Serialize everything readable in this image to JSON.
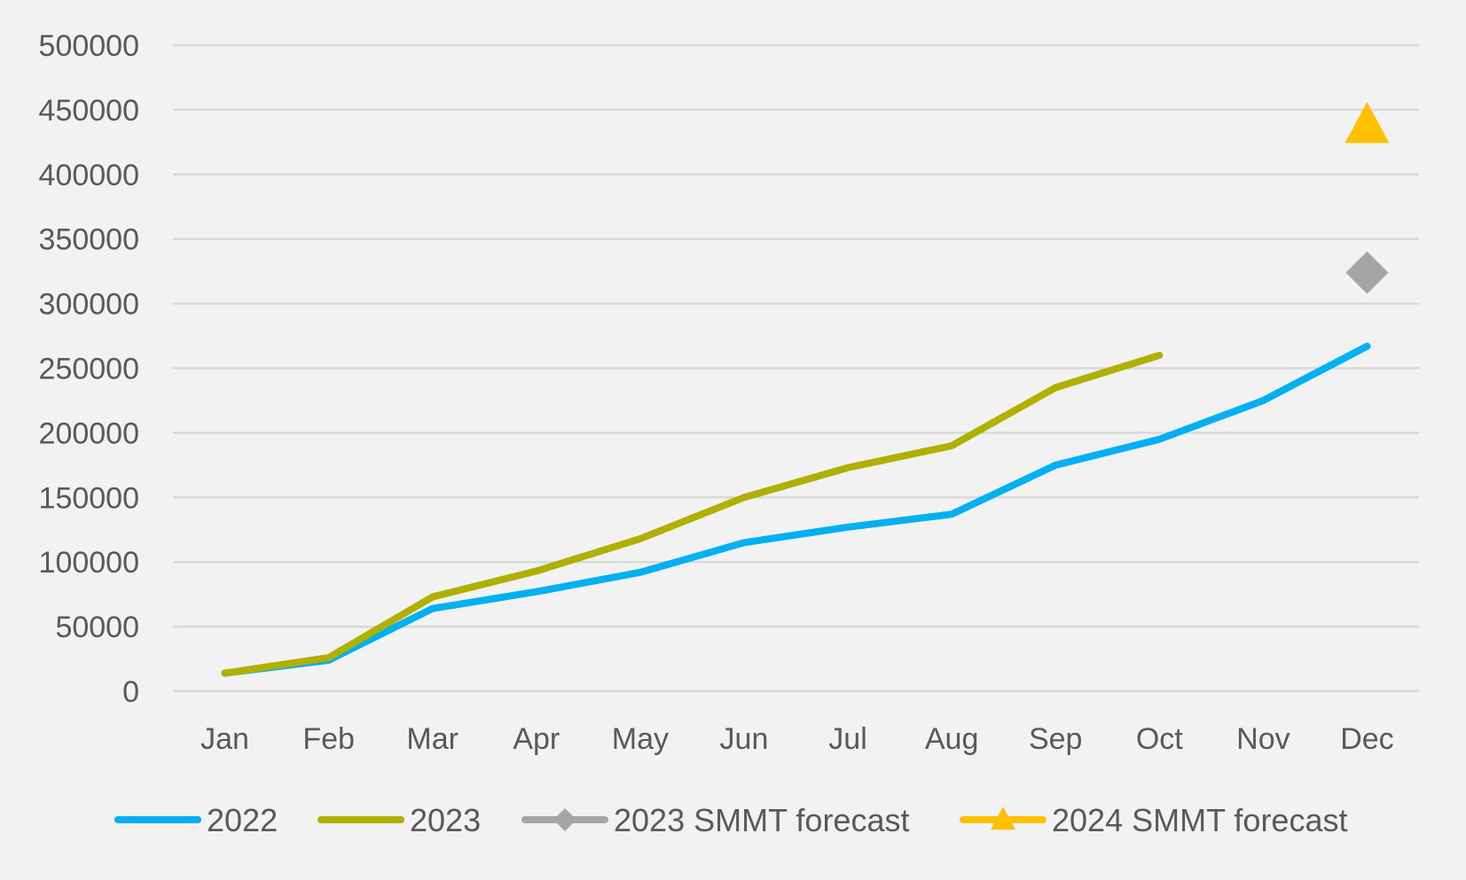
{
  "chart_data": {
    "type": "line",
    "title": "",
    "xlabel": "",
    "ylabel": "",
    "categories": [
      "Jan",
      "Feb",
      "Mar",
      "Apr",
      "May",
      "Jun",
      "Jul",
      "Aug",
      "Sep",
      "Oct",
      "Nov",
      "Dec"
    ],
    "ylim": [
      0,
      500000
    ],
    "yticks": [
      "0",
      "50000",
      "100000",
      "150000",
      "200000",
      "250000",
      "300000",
      "350000",
      "400000",
      "450000",
      "500000"
    ],
    "grid": true,
    "legend_position": "bottom",
    "series": [
      {
        "name": "2022",
        "color": "#00b0f0",
        "marker": "none",
        "values": [
          14000,
          24000,
          64000,
          77000,
          92000,
          115000,
          127000,
          137000,
          175000,
          195000,
          225000,
          267000
        ]
      },
      {
        "name": "2023",
        "color": "#b0b000",
        "marker": "none",
        "values": [
          14000,
          26000,
          73000,
          93000,
          118000,
          150000,
          173000,
          190000,
          235000,
          260000,
          null,
          null
        ]
      },
      {
        "name": "2023 SMMT forecast",
        "color": "#a5a5a5",
        "marker": "diamond",
        "values": [
          null,
          null,
          null,
          null,
          null,
          null,
          null,
          null,
          null,
          null,
          null,
          324000
        ]
      },
      {
        "name": "2024 SMMT forecast",
        "color": "#ffc000",
        "marker": "triangle",
        "values": [
          null,
          null,
          null,
          null,
          null,
          null,
          null,
          null,
          null,
          null,
          null,
          438000
        ]
      }
    ]
  }
}
